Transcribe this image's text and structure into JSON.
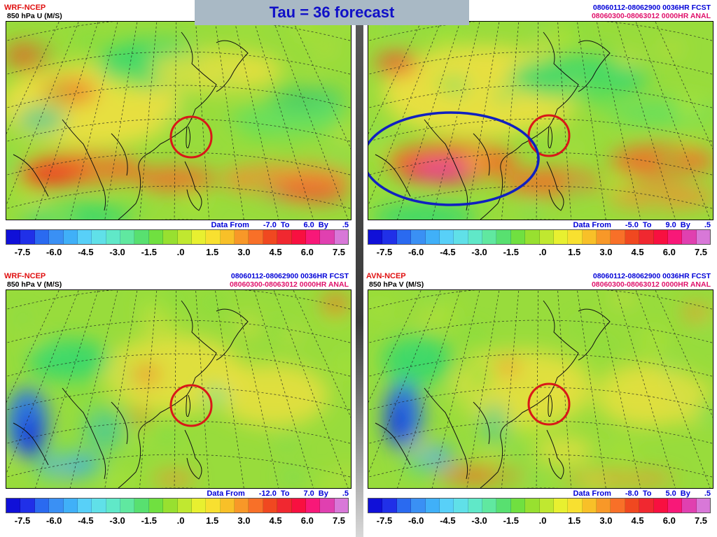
{
  "title": "Tau = 36 forecast",
  "colorbar": {
    "colors": [
      "#1010d8",
      "#2030e8",
      "#2a6af0",
      "#3a90f4",
      "#40b0f8",
      "#58d0f8",
      "#60e0e8",
      "#60e8c8",
      "#60e8a0",
      "#58e070",
      "#70e040",
      "#98e030",
      "#c0e830",
      "#e8f030",
      "#f8e030",
      "#f8c028",
      "#f89828",
      "#f87028",
      "#f04820",
      "#f02830",
      "#f81040",
      "#f81878",
      "#e040b0",
      "#d878d8"
    ],
    "ticks": [
      "-7.5",
      "-6.0",
      "-4.5",
      "-3.0",
      "-1.5",
      ".0",
      "1.5",
      "3.0",
      "4.5",
      "6.0",
      "7.5"
    ]
  },
  "panels": [
    {
      "model": "WRF-NCEP",
      "field": "850 hPa U (M/S)",
      "forecast": "",
      "analysis": "",
      "data_from": "Data From",
      "min": "-7.0",
      "to": "To",
      "max": "6.0",
      "by": "By",
      "step": ".5",
      "map_scheme": "u_wrf"
    },
    {
      "model": "",
      "field": "",
      "forecast": "08060112-08062900 0036HR FCST",
      "analysis": "08060300-08063012 0000HR ANAL",
      "data_from": "Data From",
      "min": "-5.0",
      "to": "To",
      "max": "9.0",
      "by": "By",
      "step": ".5",
      "map_scheme": "u_avn"
    },
    {
      "model": "WRF-NCEP",
      "field": "850 hPa V (M/S)",
      "forecast": "08060112-08062900 0036HR FCST",
      "analysis": "08060300-08063012 0000HR ANAL",
      "data_from": "Data From",
      "min": "-12.0",
      "to": "To",
      "max": "7.0",
      "by": "By",
      "step": ".5",
      "map_scheme": "v_wrf"
    },
    {
      "model": "AVN-NCEP",
      "field": "850 hPa V (M/S)",
      "forecast": "08060112-08062900 0036HR FCST",
      "analysis": "08060300-08063012 0000HR ANAL",
      "data_from": "Data From",
      "min": "-8.0",
      "to": "To",
      "max": "5.0",
      "by": "By",
      "step": ".5",
      "map_scheme": "v_avn"
    }
  ],
  "annotations": {
    "circle_color": "#d81818",
    "ellipse_color": "#1020c0"
  }
}
